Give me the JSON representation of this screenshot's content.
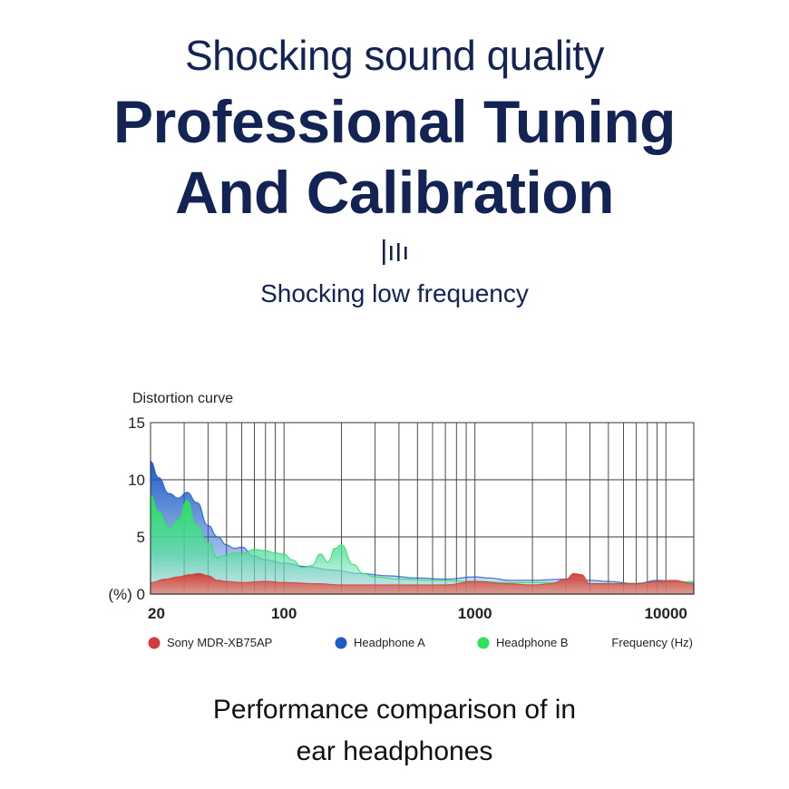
{
  "heading": {
    "line1": "Shocking sound quality",
    "line2": "Professional Tuning",
    "line3": "And Calibration",
    "subtitle": "Shocking low frequency",
    "icon": "sound-bars-icon"
  },
  "caption": {
    "line1": "Performance comparison of in",
    "line2": "ear headphones"
  },
  "chart_data": {
    "type": "area",
    "title": "Distortion curve",
    "xlabel": "Frequency (Hz)",
    "ylabel": "(%)",
    "x_scale": "log",
    "xlim": [
      20,
      14000
    ],
    "ylim": [
      0,
      15
    ],
    "x_ticks": [
      20,
      100,
      1000,
      10000
    ],
    "x_tick_labels": [
      "20",
      "100",
      "1000",
      "10000"
    ],
    "y_ticks": [
      0,
      5,
      10,
      15
    ],
    "y_tick_labels": [
      "(%) 0",
      "5",
      "10",
      "15"
    ],
    "grid": true,
    "legend_position": "bottom",
    "series": [
      {
        "name": "Headphone A",
        "color": "#1d5cc8",
        "x": [
          20,
          22,
          25,
          28,
          31,
          35,
          40,
          45,
          50,
          55,
          60,
          70,
          80,
          100,
          130,
          180,
          250,
          350,
          500,
          700,
          1000,
          1200,
          1500,
          2000,
          3000,
          4000,
          5000,
          7000,
          9000,
          11000,
          14000
        ],
        "y": [
          11.6,
          10.2,
          8.8,
          8.4,
          8.9,
          8.0,
          6.0,
          5.0,
          4.3,
          4.0,
          4.1,
          3.3,
          3.0,
          2.7,
          2.4,
          2.1,
          1.8,
          1.6,
          1.4,
          1.3,
          1.5,
          1.4,
          1.2,
          1.2,
          1.3,
          1.2,
          1.1,
          0.9,
          1.2,
          1.1,
          1.0
        ]
      },
      {
        "name": "Headphone B",
        "color": "#2ee05e",
        "x": [
          20,
          22,
          25,
          28,
          31,
          35,
          40,
          45,
          50,
          55,
          60,
          70,
          80,
          90,
          100,
          110,
          125,
          140,
          155,
          170,
          185,
          200,
          230,
          260,
          300,
          400,
          600,
          1000,
          1500,
          3000,
          5000,
          10000,
          14000
        ],
        "y": [
          8.6,
          7.2,
          5.8,
          6.5,
          8.2,
          6.0,
          4.5,
          3.2,
          3.4,
          3.6,
          3.5,
          3.9,
          3.8,
          3.6,
          3.5,
          3.0,
          2.3,
          2.5,
          3.5,
          2.8,
          4.0,
          4.3,
          2.6,
          1.8,
          1.5,
          1.3,
          1.2,
          1.1,
          1.0,
          1.0,
          0.9,
          1.0,
          1.1
        ]
      },
      {
        "name": "Sony MDR-XB75AP",
        "color": "#d23c3c",
        "x": [
          20,
          24,
          28,
          32,
          36,
          40,
          45,
          50,
          60,
          80,
          100,
          150,
          200,
          300,
          500,
          700,
          1000,
          1500,
          2000,
          2500,
          3000,
          3300,
          3600,
          4000,
          5000,
          7000,
          9000,
          11000,
          14000
        ],
        "y": [
          1.0,
          1.3,
          1.5,
          1.7,
          1.8,
          1.6,
          1.2,
          1.1,
          1.0,
          1.1,
          1.0,
          0.9,
          0.8,
          0.8,
          0.8,
          0.8,
          1.1,
          0.9,
          0.8,
          0.9,
          1.3,
          1.8,
          1.7,
          0.9,
          0.9,
          0.9,
          1.1,
          1.2,
          0.9
        ]
      }
    ]
  }
}
